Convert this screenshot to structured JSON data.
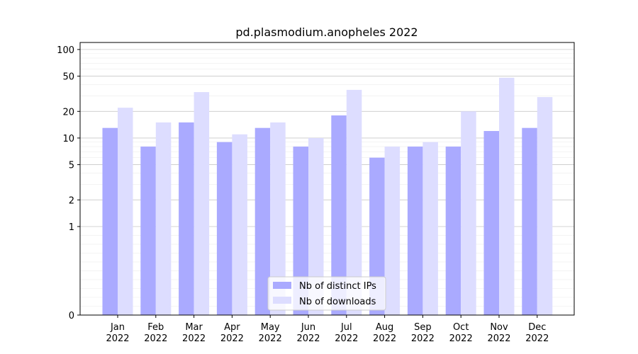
{
  "chart_data": {
    "type": "bar",
    "title": "pd.plasmodium.anopheles 2022",
    "xlabel": "",
    "ylabel": "",
    "scale": "symlog",
    "ylim": [
      0,
      120
    ],
    "yticks": [
      0,
      1,
      2,
      5,
      10,
      20,
      50,
      100
    ],
    "ytick_labels": [
      "0",
      "1",
      "2",
      "5",
      "10",
      "20",
      "50",
      "100"
    ],
    "grid": true,
    "legend_position": "bottom-center",
    "categories": [
      "Jan",
      "Feb",
      "Mar",
      "Apr",
      "May",
      "Jun",
      "Jul",
      "Aug",
      "Sep",
      "Oct",
      "Nov",
      "Dec"
    ],
    "category_sublabels": [
      "2022",
      "2022",
      "2022",
      "2022",
      "2022",
      "2022",
      "2022",
      "2022",
      "2022",
      "2022",
      "2022",
      "2022"
    ],
    "series": [
      {
        "name": "Nb of distinct IPs",
        "color": "#aaaaff",
        "values": [
          13,
          8,
          15,
          9,
          13,
          8,
          18,
          6,
          8,
          8,
          12,
          13
        ]
      },
      {
        "name": "Nb of downloads",
        "color": "#ddddff",
        "values": [
          22,
          15,
          33,
          11,
          15,
          10,
          35,
          8,
          9,
          20,
          48,
          29
        ]
      }
    ]
  }
}
